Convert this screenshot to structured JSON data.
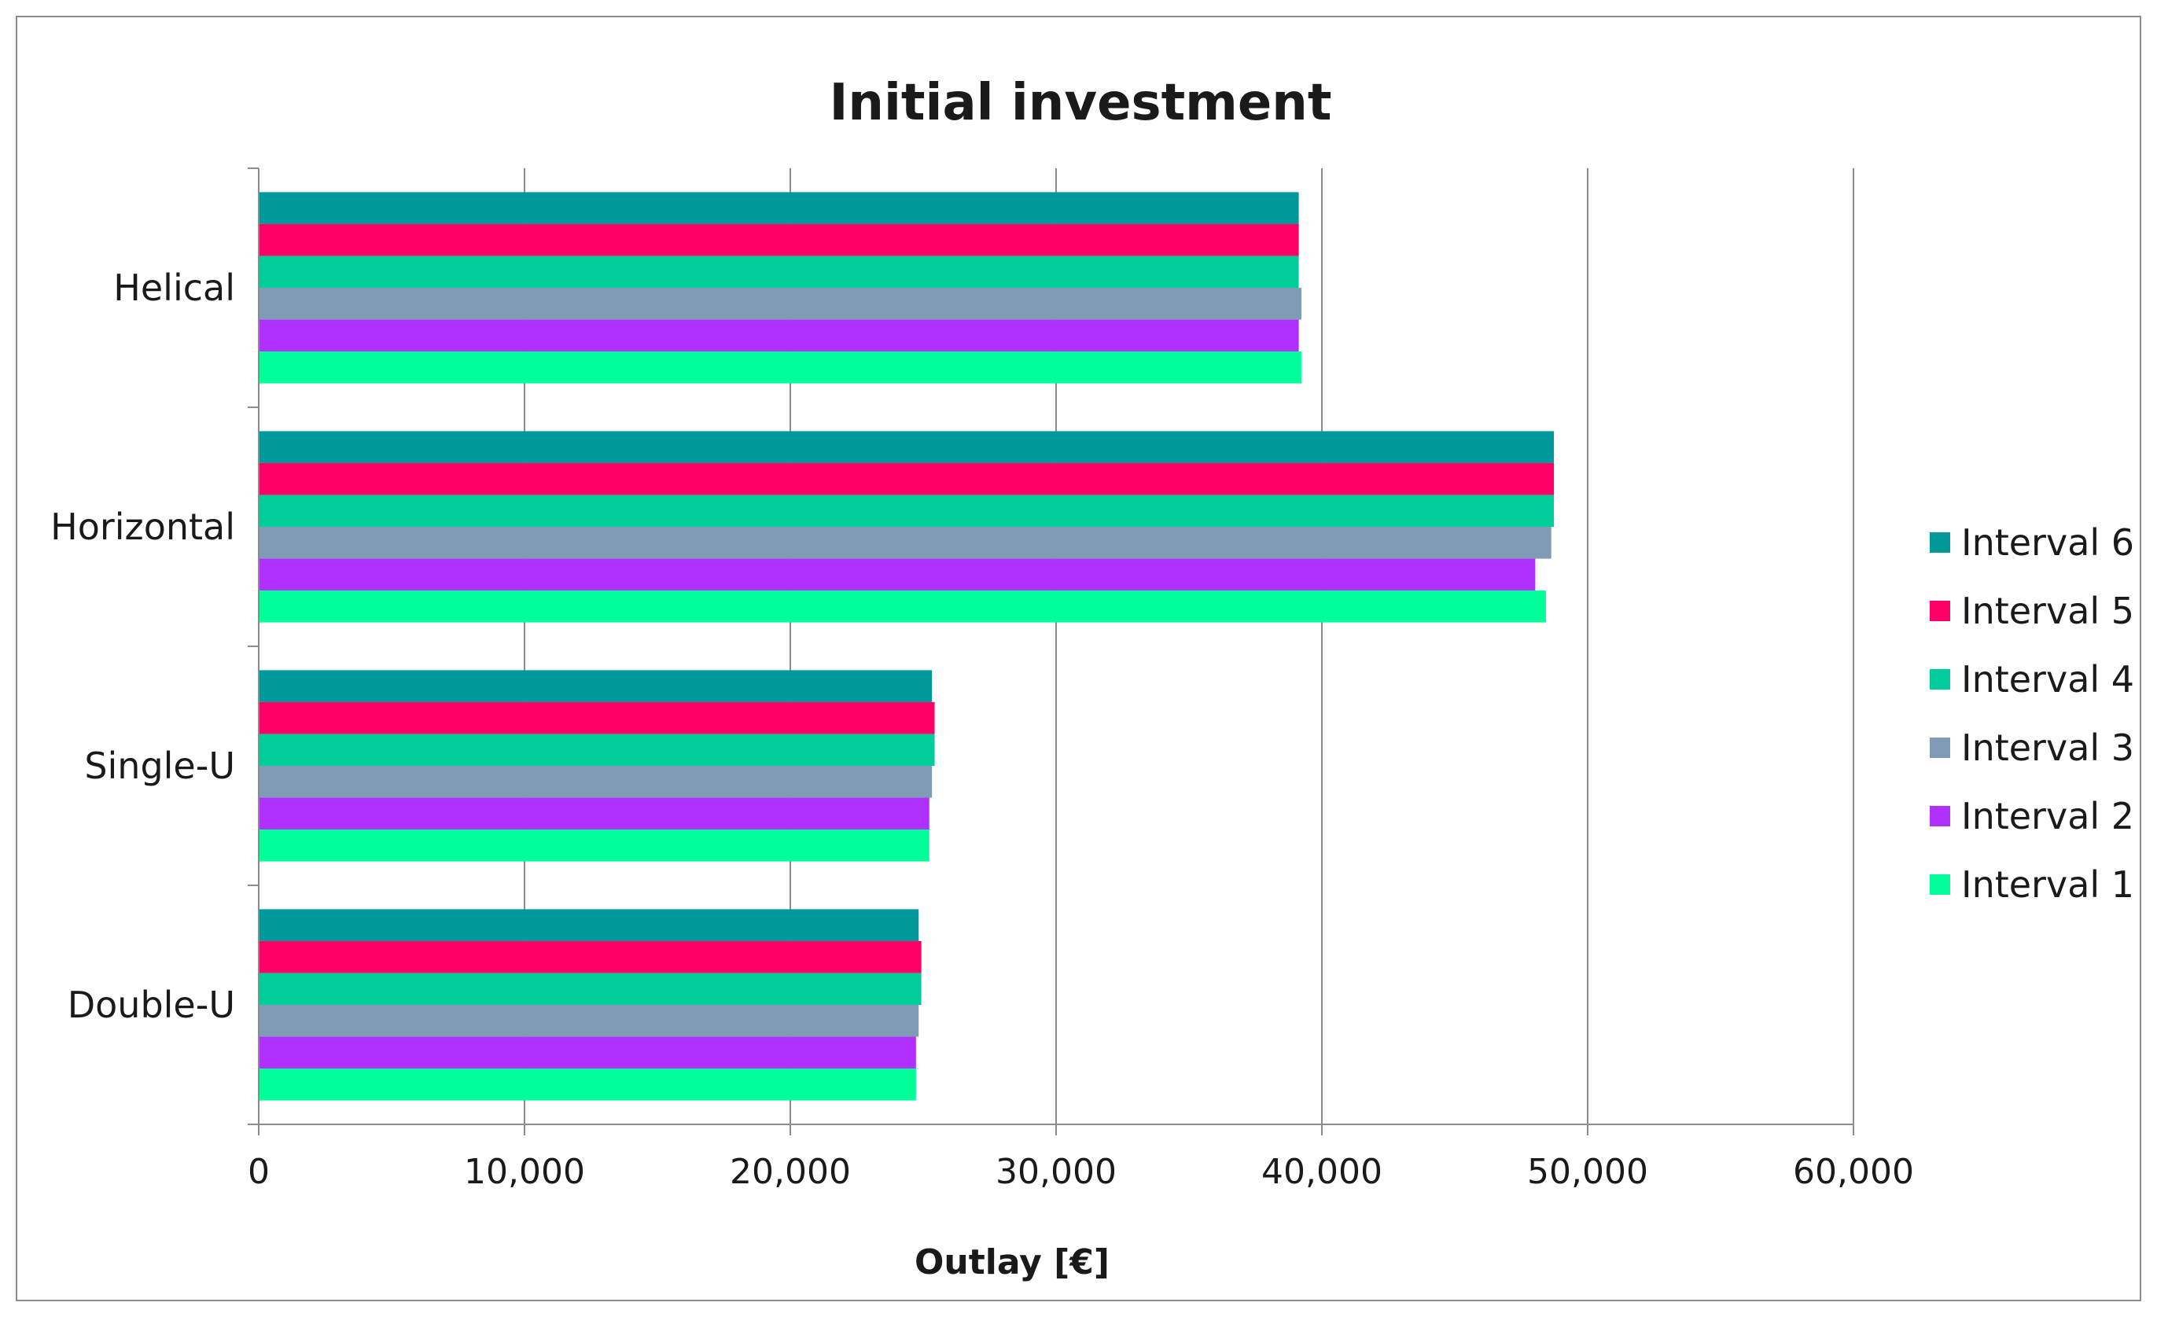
{
  "chart_data": {
    "type": "bar",
    "orientation": "horizontal",
    "title": "Initial investment",
    "xlabel": "Outlay [€]",
    "ylabel": "",
    "xlim": [
      0,
      60000
    ],
    "x_ticks": [
      0,
      10000,
      20000,
      30000,
      40000,
      50000,
      60000
    ],
    "x_tick_labels": [
      "0",
      "10,000",
      "20,000",
      "30,000",
      "40,000",
      "50,000",
      "60,000"
    ],
    "grid": "vertical",
    "legend_position": "right",
    "categories": [
      "Helical",
      "Horizontal",
      "Single-U",
      "Double-U"
    ],
    "series": [
      {
        "name": "Interval 6",
        "color": "#009999",
        "values": [
          39100,
          48700,
          25300,
          24800
        ]
      },
      {
        "name": "Interval 5",
        "color": "#ff0066",
        "values": [
          39100,
          48700,
          25400,
          24900
        ]
      },
      {
        "name": "Interval 4",
        "color": "#00cc99",
        "values": [
          39100,
          48700,
          25400,
          24900
        ]
      },
      {
        "name": "Interval 3",
        "color": "#7f9bb5",
        "values": [
          39200,
          48600,
          25300,
          24800
        ]
      },
      {
        "name": "Interval 2",
        "color": "#b030ff",
        "values": [
          39100,
          48000,
          25200,
          24700
        ]
      },
      {
        "name": "Interval 1",
        "color": "#00ff99",
        "values": [
          39200,
          48400,
          25200,
          24700
        ]
      }
    ],
    "legend_order": [
      "Interval 6",
      "Interval 5",
      "Interval 4",
      "Interval 3",
      "Interval 2",
      "Interval 1"
    ]
  }
}
